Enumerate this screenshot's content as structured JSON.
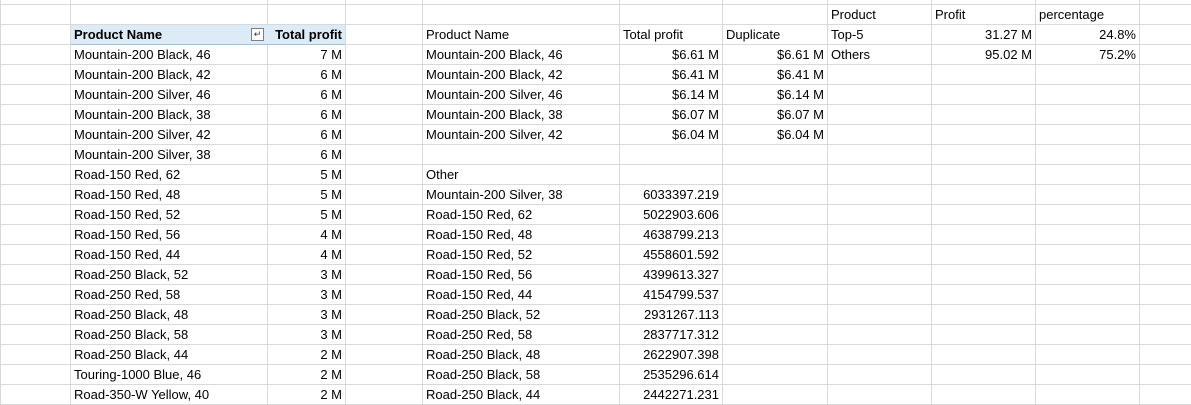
{
  "left_table": {
    "headers": {
      "product": "Product Name",
      "profit": "Total profit"
    },
    "rows": [
      [
        "Mountain-200 Black, 46",
        "7 M"
      ],
      [
        "Mountain-200 Black, 42",
        "6 M"
      ],
      [
        "Mountain-200 Silver, 46",
        "6 M"
      ],
      [
        "Mountain-200 Black, 38",
        "6 M"
      ],
      [
        "Mountain-200 Silver, 42",
        "6 M"
      ],
      [
        "Mountain-200 Silver, 38",
        "6 M"
      ],
      [
        "Road-150 Red, 62",
        "5 M"
      ],
      [
        "Road-150 Red, 48",
        "5 M"
      ],
      [
        "Road-150 Red, 52",
        "5 M"
      ],
      [
        "Road-150 Red, 56",
        "4 M"
      ],
      [
        "Road-150 Red, 44",
        "4 M"
      ],
      [
        "Road-250 Black, 52",
        "3 M"
      ],
      [
        "Road-250 Red, 58",
        "3 M"
      ],
      [
        "Road-250 Black, 48",
        "3 M"
      ],
      [
        "Road-250 Black, 58",
        "3 M"
      ],
      [
        "Road-250 Black, 44",
        "2 M"
      ],
      [
        "Touring-1000 Blue, 46",
        "2 M"
      ],
      [
        "Road-350-W Yellow, 40",
        "2 M"
      ]
    ]
  },
  "top5_table": {
    "headers": {
      "product": "Product Name",
      "profit": "Total profit",
      "duplicate": "Duplicate"
    },
    "rows": [
      [
        "Mountain-200 Black, 46",
        "$6.61 M",
        "$6.61 M"
      ],
      [
        "Mountain-200 Black, 42",
        "$6.41 M",
        "$6.41 M"
      ],
      [
        "Mountain-200 Silver, 46",
        "$6.14 M",
        "$6.14 M"
      ],
      [
        "Mountain-200 Black, 38",
        "$6.07 M",
        "$6.07 M"
      ],
      [
        "Mountain-200 Silver, 42",
        "$6.04 M",
        "$6.04 M"
      ]
    ]
  },
  "other_table": {
    "label": "Other",
    "rows": [
      [
        "Mountain-200 Silver, 38",
        "6033397.219"
      ],
      [
        "Road-150 Red, 62",
        "5022903.606"
      ],
      [
        "Road-150 Red, 48",
        "4638799.213"
      ],
      [
        "Road-150 Red, 52",
        "4558601.592"
      ],
      [
        "Road-150 Red, 56",
        "4399613.327"
      ],
      [
        "Road-150 Red, 44",
        "4154799.537"
      ],
      [
        "Road-250 Black, 52",
        "2931267.113"
      ],
      [
        "Road-250 Red, 58",
        "2837717.312"
      ],
      [
        "Road-250 Black, 48",
        "2622907.398"
      ],
      [
        "Road-250 Black, 58",
        "2535296.614"
      ],
      [
        "Road-250 Black, 44",
        "2442271.231"
      ]
    ]
  },
  "summary_table": {
    "headers": {
      "product": "Product",
      "profit": "Profit",
      "percentage": "percentage"
    },
    "rows": [
      [
        "Top-5",
        "31.27 M",
        "24.8%"
      ],
      [
        "Others",
        "95.02 M",
        "75.2%"
      ]
    ]
  },
  "icons": {
    "filter": "sort-descending-filter-icon"
  },
  "colors": {
    "header_fill": "#ddebf7",
    "gridline": "#d4d4d4",
    "header_border": "#9bc2e6"
  }
}
